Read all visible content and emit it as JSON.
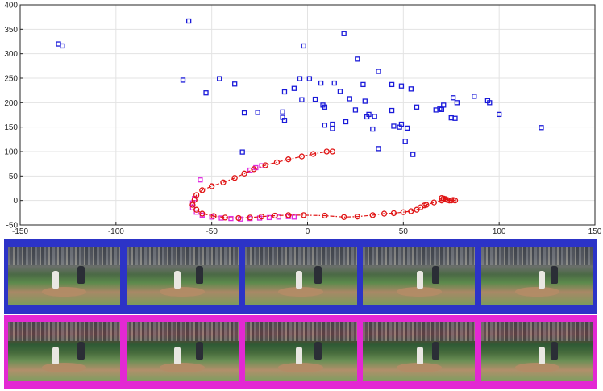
{
  "chart_data": {
    "type": "scatter",
    "xlim": [
      -150,
      150
    ],
    "ylim": [
      -50,
      400
    ],
    "xticks": [
      -150,
      -100,
      -50,
      0,
      50,
      100,
      150
    ],
    "yticks": [
      -50,
      0,
      50,
      100,
      150,
      200,
      250,
      300,
      350,
      400
    ],
    "grid": true,
    "series": [
      {
        "marker": "square",
        "color": "#1a1ad9",
        "points": [
          [
            -130,
            320
          ],
          [
            -128,
            316
          ],
          [
            -62,
            367
          ],
          [
            -65,
            246
          ],
          [
            -46,
            249
          ],
          [
            -53,
            220
          ],
          [
            -38,
            238
          ],
          [
            -33,
            179
          ],
          [
            -26,
            180
          ],
          [
            -34,
            99
          ],
          [
            -13,
            181
          ],
          [
            -13,
            170
          ],
          [
            -12,
            164
          ],
          [
            -12,
            222
          ],
          [
            -7,
            229
          ],
          [
            -4,
            249
          ],
          [
            -3,
            206
          ],
          [
            -2,
            316
          ],
          [
            1,
            249
          ],
          [
            4,
            207
          ],
          [
            7,
            240
          ],
          [
            8,
            195
          ],
          [
            9,
            191
          ],
          [
            9,
            154
          ],
          [
            14,
            240
          ],
          [
            13,
            156
          ],
          [
            13,
            147
          ],
          [
            17,
            223
          ],
          [
            19,
            341
          ],
          [
            20,
            161
          ],
          [
            22,
            208
          ],
          [
            26,
            289
          ],
          [
            25,
            185
          ],
          [
            29,
            237
          ],
          [
            30,
            203
          ],
          [
            32,
            176
          ],
          [
            31,
            171
          ],
          [
            34,
            146
          ],
          [
            35,
            172
          ],
          [
            37,
            264
          ],
          [
            37,
            106
          ],
          [
            44,
            237
          ],
          [
            44,
            184
          ],
          [
            45,
            152
          ],
          [
            48,
            150
          ],
          [
            49,
            234
          ],
          [
            49,
            156
          ],
          [
            51,
            121
          ],
          [
            52,
            148
          ],
          [
            54,
            228
          ],
          [
            55,
            94
          ],
          [
            57,
            191
          ],
          [
            67,
            185
          ],
          [
            69,
            188
          ],
          [
            70,
            186
          ],
          [
            71,
            195
          ],
          [
            75,
            169
          ],
          [
            76,
            210
          ],
          [
            77,
            168
          ],
          [
            78,
            200
          ],
          [
            87,
            213
          ],
          [
            94,
            204
          ],
          [
            95,
            200
          ],
          [
            100,
            176
          ],
          [
            122,
            149
          ]
        ]
      },
      {
        "marker": "square",
        "color": "#e02be0",
        "points": [
          [
            -56,
            42
          ],
          [
            -30,
            62
          ],
          [
            -27,
            67
          ],
          [
            -24,
            71
          ],
          [
            -59,
            4
          ],
          [
            -60,
            -5
          ],
          [
            -60,
            -15
          ],
          [
            -58,
            -24
          ],
          [
            -55,
            -30
          ],
          [
            -50,
            -34
          ],
          [
            -45,
            -36
          ],
          [
            -40,
            -37
          ],
          [
            -35,
            -38
          ],
          [
            -30,
            -37
          ],
          [
            -25,
            -36
          ],
          [
            -20,
            -35
          ],
          [
            -15,
            -34
          ],
          [
            -10,
            -33
          ],
          [
            -7,
            -34
          ]
        ]
      },
      {
        "marker": "circle",
        "line": "dash-dot",
        "color": "#e01414",
        "points": [
          [
            13,
            100
          ],
          [
            10,
            100
          ],
          [
            3,
            95
          ],
          [
            -3,
            90
          ],
          [
            -10,
            84
          ],
          [
            -16,
            78
          ],
          [
            -22,
            72
          ],
          [
            -28,
            64
          ],
          [
            -33,
            55
          ],
          [
            -38,
            46
          ],
          [
            -44,
            37
          ],
          [
            -50,
            29
          ],
          [
            -55,
            21
          ],
          [
            -58,
            11
          ],
          [
            -59,
            1
          ],
          [
            -60,
            -9
          ],
          [
            -58,
            -19
          ],
          [
            -55,
            -27
          ],
          [
            -49,
            -32
          ],
          [
            -43,
            -35
          ],
          [
            -36,
            -36
          ],
          [
            -30,
            -35
          ],
          [
            -24,
            -33
          ],
          [
            -17,
            -31
          ],
          [
            -10,
            -30
          ],
          [
            -2,
            -30
          ],
          [
            9,
            -31
          ],
          [
            19,
            -34
          ],
          [
            26,
            -33
          ],
          [
            34,
            -30
          ],
          [
            40,
            -27
          ],
          [
            45,
            -26
          ],
          [
            50,
            -24
          ],
          [
            54,
            -22
          ],
          [
            57,
            -19
          ],
          [
            59,
            -14
          ],
          [
            61,
            -10
          ],
          [
            62,
            -9
          ],
          [
            66,
            -4
          ],
          [
            70,
            0
          ],
          [
            72,
            2
          ],
          [
            73,
            1
          ],
          [
            75,
            0
          ],
          [
            70,
            5
          ],
          [
            71,
            4
          ],
          [
            72,
            3
          ],
          [
            74,
            0
          ],
          [
            76,
            1
          ],
          [
            77,
            0
          ]
        ]
      }
    ]
  },
  "strips": {
    "blue": {
      "color": "#2c33c7",
      "frames": 5
    },
    "pink": {
      "color": "#e328d3",
      "frames": 5
    }
  }
}
